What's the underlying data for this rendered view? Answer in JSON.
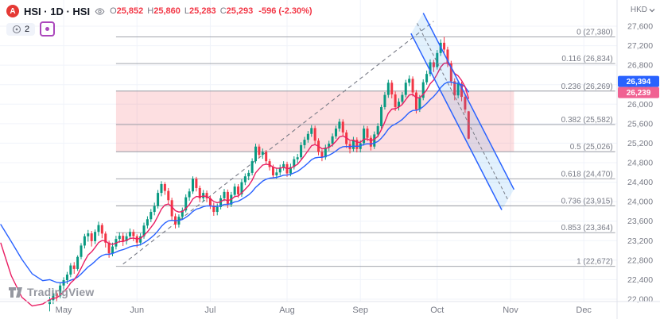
{
  "header": {
    "symbol_logo_letter": "A",
    "symbol_title": "HSI · 1D · HSI",
    "ohlc": {
      "open_label": "O",
      "open": "25,852",
      "high_label": "H",
      "high": "25,860",
      "low_label": "L",
      "low": "25,283",
      "close_label": "C",
      "close": "25,293",
      "change": "-596 (-2.30%)"
    },
    "interval_badge": "2",
    "currency": "HKD"
  },
  "footer": {
    "brand": "TradingView"
  },
  "chart_data": {
    "type": "candlestick",
    "title": "HSI daily chart with Fibonacci retracement zone and descending channel",
    "y_axis": {
      "min": 22000,
      "max": 27600,
      "step": 400,
      "unit": "HKD"
    },
    "x_axis": {
      "months": [
        {
          "label": "May",
          "i": 4
        },
        {
          "label": "Jun",
          "i": 25
        },
        {
          "label": "Jul",
          "i": 46
        },
        {
          "label": "Aug",
          "i": 68
        },
        {
          "label": "Sep",
          "i": 89
        },
        {
          "label": "Oct",
          "i": 111
        },
        {
          "label": "Nov",
          "i": 132
        },
        {
          "label": "Dec",
          "i": 153
        }
      ]
    },
    "candles": [
      [
        21900,
        22050,
        21750,
        21980
      ],
      [
        21980,
        22200,
        21900,
        22120
      ],
      [
        22120,
        22180,
        21950,
        22060
      ],
      [
        22060,
        22330,
        22020,
        22280
      ],
      [
        22280,
        22450,
        22200,
        22390
      ],
      [
        22390,
        22560,
        22310,
        22504
      ],
      [
        22504,
        22740,
        22450,
        22691
      ],
      [
        22691,
        22760,
        22520,
        22620
      ],
      [
        22620,
        22900,
        22580,
        22867
      ],
      [
        22867,
        23150,
        22820,
        23100
      ],
      [
        23100,
        23340,
        23040,
        23290
      ],
      [
        23290,
        23420,
        23180,
        23350
      ],
      [
        23350,
        23400,
        23080,
        23190
      ],
      [
        23190,
        23430,
        23130,
        23380
      ],
      [
        23380,
        23590,
        23300,
        23520
      ],
      [
        23520,
        23560,
        23250,
        23345
      ],
      [
        23345,
        23390,
        23060,
        23160
      ],
      [
        23160,
        23200,
        22850,
        22940
      ],
      [
        22940,
        23160,
        22880,
        23080
      ],
      [
        23080,
        23300,
        23020,
        23235
      ],
      [
        23235,
        23370,
        23160,
        23300
      ],
      [
        23300,
        23360,
        23090,
        23190
      ],
      [
        23190,
        23350,
        23120,
        23290
      ],
      [
        23290,
        23450,
        23230,
        23380
      ],
      [
        23380,
        23430,
        23190,
        23290
      ],
      [
        23290,
        23330,
        23060,
        23160
      ],
      [
        23160,
        23350,
        23100,
        23290
      ],
      [
        23290,
        23570,
        23240,
        23510
      ],
      [
        23510,
        23700,
        23450,
        23640
      ],
      [
        23640,
        23850,
        23580,
        23790
      ],
      [
        23790,
        23980,
        23720,
        23910
      ],
      [
        23910,
        24240,
        23860,
        24180
      ],
      [
        24180,
        24420,
        24110,
        24360
      ],
      [
        24360,
        24400,
        24140,
        24220
      ],
      [
        24220,
        24280,
        23960,
        24030
      ],
      [
        24030,
        24080,
        23620,
        23700
      ],
      [
        23700,
        23760,
        23450,
        23530
      ],
      [
        23530,
        23740,
        23470,
        23690
      ],
      [
        23690,
        23880,
        23630,
        23820
      ],
      [
        23820,
        24150,
        23780,
        24090
      ],
      [
        24090,
        24270,
        24020,
        24210
      ],
      [
        24210,
        24520,
        24160,
        24470
      ],
      [
        24470,
        24510,
        24210,
        24280
      ],
      [
        24280,
        24330,
        23990,
        24070
      ],
      [
        24070,
        24240,
        24000,
        24180
      ],
      [
        24180,
        24230,
        23990,
        24070
      ],
      [
        24070,
        24110,
        23850,
        23920
      ],
      [
        23920,
        23980,
        23710,
        23790
      ],
      [
        23790,
        23960,
        23720,
        23890
      ],
      [
        23890,
        24130,
        23840,
        24070
      ],
      [
        24070,
        24260,
        24010,
        24200
      ],
      [
        24200,
        24250,
        23870,
        23940
      ],
      [
        23940,
        24200,
        23890,
        24140
      ],
      [
        24140,
        24370,
        24090,
        24310
      ],
      [
        24310,
        24360,
        24080,
        24150
      ],
      [
        24150,
        24460,
        24100,
        24400
      ],
      [
        24400,
        24580,
        24340,
        24520
      ],
      [
        24520,
        24650,
        24440,
        24590
      ],
      [
        24590,
        24890,
        24540,
        24830
      ],
      [
        24830,
        25190,
        24780,
        25130
      ],
      [
        25130,
        25180,
        24890,
        24960
      ],
      [
        24960,
        25090,
        24880,
        25020
      ],
      [
        25020,
        25060,
        24770,
        24830
      ],
      [
        24830,
        24880,
        24640,
        24710
      ],
      [
        24710,
        24760,
        24480,
        24540
      ],
      [
        24540,
        24680,
        24470,
        24600
      ],
      [
        24600,
        24760,
        24540,
        24700
      ],
      [
        24700,
        24830,
        24640,
        24770
      ],
      [
        24770,
        24820,
        24510,
        24580
      ],
      [
        24580,
        24780,
        24520,
        24710
      ],
      [
        24710,
        24930,
        24660,
        24870
      ],
      [
        24870,
        24980,
        24790,
        24910
      ],
      [
        24910,
        25220,
        24860,
        25160
      ],
      [
        25160,
        25330,
        25090,
        25270
      ],
      [
        25270,
        25450,
        25210,
        25390
      ],
      [
        25390,
        25570,
        25330,
        25510
      ],
      [
        25510,
        25560,
        25180,
        25250
      ],
      [
        25250,
        25300,
        24950,
        25020
      ],
      [
        25020,
        25070,
        24830,
        24910
      ],
      [
        24910,
        25170,
        24860,
        25110
      ],
      [
        25110,
        25250,
        25040,
        25190
      ],
      [
        25190,
        25400,
        25130,
        25340
      ],
      [
        25340,
        25560,
        25290,
        25500
      ],
      [
        25500,
        25700,
        25440,
        25640
      ],
      [
        25640,
        25690,
        25350,
        25420
      ],
      [
        25420,
        25470,
        25100,
        25180
      ],
      [
        25180,
        25240,
        24990,
        25080
      ],
      [
        25080,
        25330,
        25030,
        25270
      ],
      [
        25270,
        25320,
        25010,
        25080
      ],
      [
        25080,
        25260,
        25010,
        25200
      ],
      [
        25200,
        25560,
        25150,
        25500
      ],
      [
        25500,
        25550,
        25240,
        25310
      ],
      [
        25310,
        25360,
        25050,
        25130
      ],
      [
        25130,
        25440,
        25080,
        25380
      ],
      [
        25380,
        25610,
        25320,
        25550
      ],
      [
        25550,
        25990,
        25500,
        25940
      ],
      [
        25940,
        26250,
        25890,
        26190
      ],
      [
        26190,
        26500,
        26130,
        26440
      ],
      [
        26440,
        26490,
        26120,
        26200
      ],
      [
        26200,
        26260,
        25860,
        25940
      ],
      [
        25940,
        26120,
        25870,
        26050
      ],
      [
        26050,
        26250,
        25990,
        26190
      ],
      [
        26190,
        26500,
        26140,
        26440
      ],
      [
        26440,
        26590,
        26370,
        26520
      ],
      [
        26520,
        26570,
        26160,
        26240
      ],
      [
        26240,
        26290,
        25810,
        25890
      ],
      [
        25890,
        26190,
        25840,
        26130
      ],
      [
        26130,
        26510,
        26080,
        26450
      ],
      [
        26450,
        26690,
        26400,
        26620
      ],
      [
        26620,
        26920,
        26570,
        26860
      ],
      [
        26860,
        26910,
        26660,
        26760
      ],
      [
        26760,
        27110,
        26710,
        27050
      ],
      [
        27050,
        27330,
        26990,
        27260
      ],
      [
        27260,
        27380,
        27020,
        27120
      ],
      [
        27120,
        27180,
        26760,
        26840
      ],
      [
        26840,
        26890,
        26380,
        26470
      ],
      [
        26470,
        26530,
        26080,
        26180
      ],
      [
        26180,
        26470,
        26120,
        26420
      ],
      [
        26420,
        26460,
        26060,
        26150
      ],
      [
        26150,
        26200,
        25820,
        25889
      ],
      [
        25852,
        25860,
        25283,
        25293
      ]
    ],
    "ma_lines": [
      {
        "name": "ma-line-slow",
        "period": 20,
        "seed": 22400,
        "color": "#2962ff",
        "pre": [
          [
            -14,
            23530
          ],
          [
            -11,
            23180
          ],
          [
            -8,
            22820
          ],
          [
            -5,
            22520
          ],
          [
            -2,
            22380
          ],
          [
            0,
            22400
          ]
        ]
      },
      {
        "name": "ma-line-fast",
        "period": 8,
        "seed": 21990,
        "color": "#e91e63",
        "pre": [
          [
            -14,
            23150
          ],
          [
            -11,
            22480
          ],
          [
            -8,
            22040
          ],
          [
            -5,
            21860
          ],
          [
            -2,
            21900
          ],
          [
            0,
            21990
          ]
        ]
      }
    ],
    "ma_price_labels": [
      {
        "text": "26,394",
        "value": 26394,
        "color": "#2962ff"
      },
      {
        "text": "26,239",
        "value": 26239,
        "color": "#f06292"
      }
    ],
    "fib": {
      "line_from_i": 19,
      "line_to_i": 162,
      "band_from_i": 19,
      "band_to_i": 133,
      "band": {
        "top_price": 26269,
        "bottom_price": 25026,
        "fill": "rgba(242,54,69,0.16)"
      },
      "levels": [
        {
          "ratio": "0",
          "price": 27380,
          "label": "0 (27,380)"
        },
        {
          "ratio": "0.116",
          "price": 26834,
          "label": "0.116 (26,834)"
        },
        {
          "ratio": "0.236",
          "price": 26269,
          "label": "0.236 (26,269)"
        },
        {
          "ratio": "0.382",
          "price": 25582,
          "label": "0.382 (25,582)"
        },
        {
          "ratio": "0.5",
          "price": 25026,
          "label": "0.5 (25,026)"
        },
        {
          "ratio": "0.618",
          "price": 24470,
          "label": "0.618 (24,470)"
        },
        {
          "ratio": "0.736",
          "price": 23915,
          "label": "0.736 (23,915)"
        },
        {
          "ratio": "0.853",
          "price": 23364,
          "label": "0.853 (23,364)"
        },
        {
          "ratio": "1",
          "price": 22672,
          "label": "1 (22,672)"
        }
      ]
    },
    "trendline": {
      "from": {
        "i": 21,
        "price": 22720
      },
      "to": {
        "i": 110,
        "price": 27700
      },
      "style": "dashed",
      "color": "#787b86"
    },
    "channel": {
      "upper": {
        "from": {
          "i": 107,
          "price": 27870
        },
        "to": {
          "i": 133,
          "price": 24250
        }
      },
      "lower": {
        "from": {
          "i": 103.5,
          "price": 27450
        },
        "to": {
          "i": 129.5,
          "price": 23830
        }
      },
      "color": "#2962ff",
      "fill": "rgba(33,150,243,0.13)",
      "midline_color": "#787b86"
    },
    "colors": {
      "up": "#089981",
      "down": "#f23645",
      "grid": "#f0f3fa",
      "axis_text": "#787b86",
      "fib_line": "#9598a1",
      "axis_border": "#e0e3eb"
    }
  }
}
